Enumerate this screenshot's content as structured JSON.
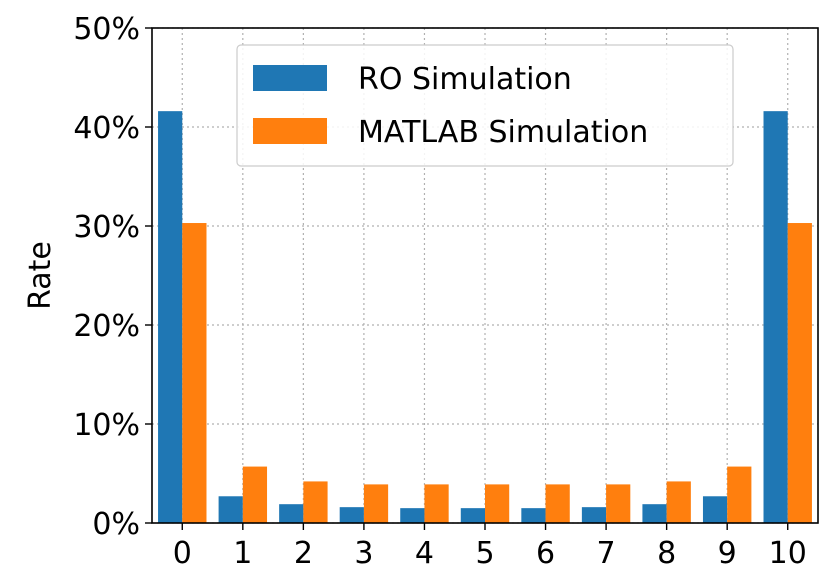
{
  "chart_data": {
    "type": "bar",
    "title": "",
    "xlabel": "",
    "ylabel": "Rate",
    "ylim": [
      0,
      50
    ],
    "yticks": [
      "0%",
      "10%",
      "20%",
      "30%",
      "40%",
      "50%"
    ],
    "ytick_values": [
      0,
      10,
      20,
      30,
      40,
      50
    ],
    "categories": [
      "0",
      "1",
      "2",
      "3",
      "4",
      "5",
      "6",
      "7",
      "8",
      "9",
      "10"
    ],
    "grid": true,
    "legend_position": "top-center",
    "series": [
      {
        "name": "RO Simulation",
        "color": "#1f77b4",
        "values": [
          41.6,
          2.7,
          1.9,
          1.6,
          1.5,
          1.5,
          1.5,
          1.6,
          1.9,
          2.7,
          41.6
        ]
      },
      {
        "name": "MATLAB Simulation",
        "color": "#ff7f0e",
        "values": [
          30.3,
          5.7,
          4.2,
          3.9,
          3.9,
          3.9,
          3.9,
          3.9,
          4.2,
          5.7,
          30.3
        ]
      }
    ]
  }
}
